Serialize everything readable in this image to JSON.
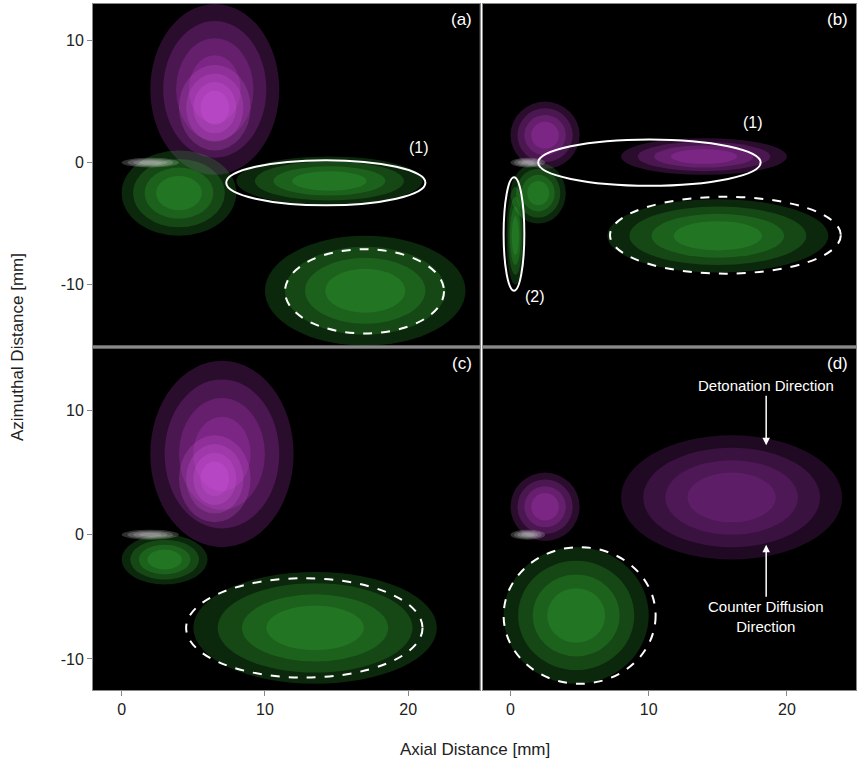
{
  "chart_data": {
    "type": "image_grid",
    "xlabel": "Axial Distance [mm]",
    "ylabel": "Azimuthal Distance [mm]",
    "panels": [
      {
        "panel": "(a)",
        "xlim": [
          -2,
          25
        ],
        "ylim": [
          -15,
          13
        ],
        "xticks": [
          0,
          10,
          20
        ],
        "yticks": [
          -10,
          0,
          10
        ],
        "tick_labels": "y",
        "emission": [
          {
            "color": "#d040e0",
            "x": [
              2,
              11
            ],
            "y": [
              -1,
              13
            ]
          },
          {
            "color": "#e060f0",
            "x": [
              4,
              9
            ],
            "y": [
              1,
              8
            ]
          },
          {
            "color": "#3ec83e",
            "x": [
              0,
              8
            ],
            "y": [
              -6,
              1
            ]
          },
          {
            "color": "#3ec83e",
            "x": [
              8,
              21
            ],
            "y": [
              -3.5,
              0.5
            ]
          },
          {
            "color": "#3ec83e",
            "x": [
              10,
              24
            ],
            "y": [
              -15,
              -6
            ]
          },
          {
            "color": "#f0f0f0",
            "x": [
              0,
              4
            ],
            "y": [
              -0.4,
              0.4
            ]
          }
        ],
        "regions": [
          {
            "label": "(1)",
            "x": [
              7.3,
              21.2
            ],
            "y": [
              -3.5,
              0.2
            ],
            "line_style": "solid",
            "label_x": 19.9,
            "label_y": 0.4
          },
          {
            "x": [
              11.4,
              22.5
            ],
            "y": [
              -14.0,
              -7.1
            ],
            "line_style": "dashed"
          }
        ]
      },
      {
        "panel": "(b)",
        "xlim": [
          -2,
          25
        ],
        "ylim": [
          -15,
          13
        ],
        "xticks": [
          0,
          10,
          20
        ],
        "yticks": [
          -10,
          0,
          10
        ],
        "tick_labels": false,
        "emission": [
          {
            "color": "#d040e0",
            "x": [
              0,
              5
            ],
            "y": [
              -0.5,
              5
            ]
          },
          {
            "color": "#d040e0",
            "x": [
              8,
              20
            ],
            "y": [
              -1,
              2
            ]
          },
          {
            "color": "#3ec83e",
            "x": [
              0,
              4
            ],
            "y": [
              -5,
              0
            ]
          },
          {
            "color": "#3ec83e",
            "x": [
              7,
              23
            ],
            "y": [
              -9,
              -3
            ]
          },
          {
            "color": "#3ec83e",
            "x": [
              -0.3,
              1
            ],
            "y": [
              -10,
              -2
            ]
          },
          {
            "color": "#f0f0f0",
            "x": [
              0,
              2.5
            ],
            "y": [
              -0.4,
              0.4
            ]
          }
        ],
        "regions": [
          {
            "label": "(1)",
            "x": [
              2.0,
              18.1
            ],
            "y": [
              -1.9,
              1.9
            ],
            "line_style": "solid",
            "label_x": 16.7,
            "label_y": 2.4
          },
          {
            "label": "(2)",
            "x": [
              -0.5,
              1.0
            ],
            "y": [
              -10.5,
              -1.2
            ],
            "line_style": "solid",
            "label_x": 0.9,
            "label_y": -11.8
          },
          {
            "x": [
              7.2,
              23.9
            ],
            "y": [
              -9.1,
              -2.8
            ],
            "line_style": "dashed"
          }
        ]
      },
      {
        "panel": "(c)",
        "xlim": [
          -2,
          25
        ],
        "ylim": [
          -12.5,
          15
        ],
        "xticks": [
          0,
          10,
          20
        ],
        "yticks": [
          -10,
          0,
          10
        ],
        "tick_labels": true,
        "emission": [
          {
            "color": "#d040e0",
            "x": [
              2,
              12
            ],
            "y": [
              -1,
              14
            ]
          },
          {
            "color": "#e060f0",
            "x": [
              4,
              9
            ],
            "y": [
              1,
              8
            ]
          },
          {
            "color": "#3ec83e",
            "x": [
              0,
              6
            ],
            "y": [
              -4,
              0
            ]
          },
          {
            "color": "#3ec83e",
            "x": [
              5,
              22
            ],
            "y": [
              -12,
              -3
            ]
          },
          {
            "color": "#f0f0f0",
            "x": [
              0,
              4
            ],
            "y": [
              -0.4,
              0.4
            ]
          }
        ],
        "regions": [
          {
            "x": [
              4.5,
              21.0
            ],
            "y": [
              -11.5,
              -3.5
            ],
            "line_style": "dashed"
          }
        ]
      },
      {
        "panel": "(d)",
        "xlim": [
          -2,
          25
        ],
        "ylim": [
          -12.5,
          15
        ],
        "xticks": [
          0,
          10,
          20
        ],
        "yticks": [
          -10,
          0,
          10
        ],
        "tick_labels": "x",
        "emission": [
          {
            "color": "#d040e0",
            "x": [
              0,
              5
            ],
            "y": [
              -0.5,
              5
            ]
          },
          {
            "color": "#a030b0",
            "x": [
              8,
              24
            ],
            "y": [
              -2,
              8
            ]
          },
          {
            "color": "#3ec83e",
            "x": [
              -0.5,
              10
            ],
            "y": [
              -12,
              -1
            ]
          },
          {
            "color": "#f0f0f0",
            "x": [
              0,
              2.5
            ],
            "y": [
              -0.4,
              0.4
            ]
          }
        ],
        "regions": [
          {
            "x": [
              -0.5,
              10.5
            ],
            "y": [
              -12.0,
              -1.0
            ],
            "line_style": "dashed"
          }
        ],
        "annotations": [
          {
            "text": "Detonation Direction",
            "x": 18.5,
            "y": 7.2,
            "text_x": 18.5,
            "text_y": 12.0
          },
          {
            "text": "Counter Diffusion Direction",
            "x": 18.5,
            "y": -0.8,
            "text_x": 18.5,
            "text_y": -6.6
          }
        ]
      }
    ]
  }
}
